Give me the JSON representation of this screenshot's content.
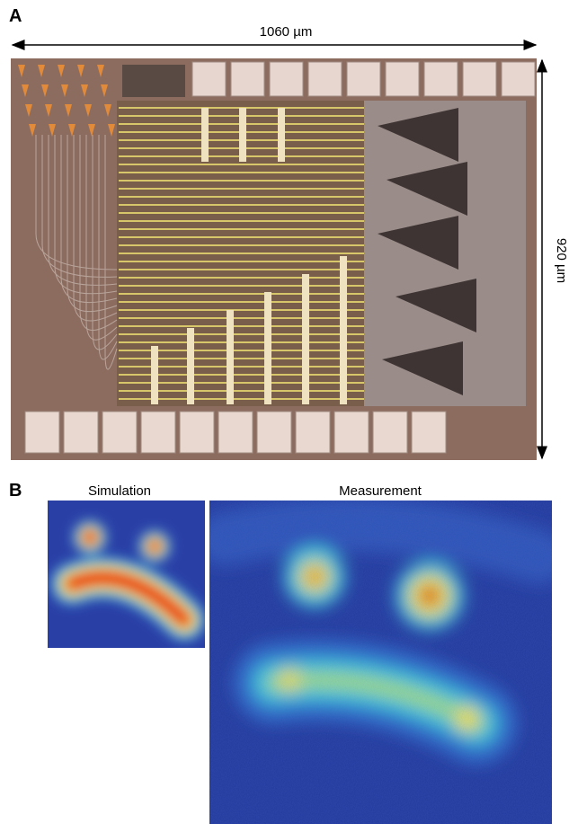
{
  "panel_a": {
    "label": "A",
    "width_label": "1060 µm",
    "height_label": "920 µm"
  },
  "panel_b": {
    "label": "B",
    "simulation_title": "Simulation",
    "measurement_title": "Measurement"
  }
}
